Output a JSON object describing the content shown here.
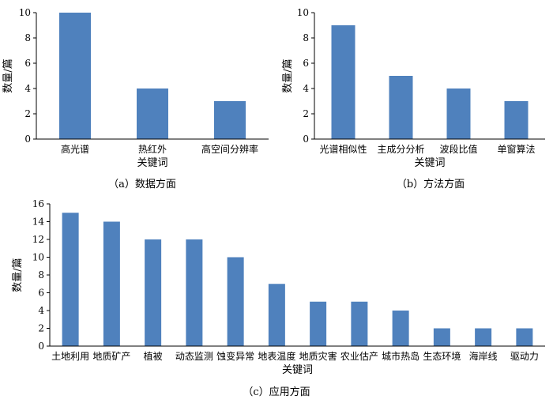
{
  "bar_color": "#4f81bd",
  "chart_data": [
    {
      "type": "bar",
      "caption": "（a）数据方面",
      "xlabel": "关键词",
      "ylabel": "数量/篇",
      "ylim": [
        0,
        10
      ],
      "yticks": [
        0,
        2,
        4,
        6,
        8,
        10
      ],
      "categories": [
        "高光谱",
        "热红外",
        "高空间分辨率"
      ],
      "values": [
        10,
        4,
        3
      ]
    },
    {
      "type": "bar",
      "caption": "（b）方法方面",
      "xlabel": "关键词",
      "ylabel": "数量/篇",
      "ylim": [
        0,
        10
      ],
      "yticks": [
        0,
        2,
        4,
        6,
        8,
        10
      ],
      "categories": [
        "光谱相似性",
        "主成分分析",
        "波段比值",
        "单窗算法"
      ],
      "values": [
        9,
        5,
        4,
        3
      ]
    },
    {
      "type": "bar",
      "caption": "（c）应用方面",
      "xlabel": "关键词",
      "ylabel": "数量/篇",
      "ylim": [
        0,
        16
      ],
      "yticks": [
        0,
        2,
        4,
        6,
        8,
        10,
        12,
        14,
        16
      ],
      "categories": [
        "土地利用",
        "地质矿产",
        "植被",
        "动态监测",
        "蚀变异常",
        "地表温度",
        "地质灾害",
        "农业估产",
        "城市热岛",
        "生态环境",
        "海岸线",
        "驱动力"
      ],
      "values": [
        15,
        14,
        12,
        12,
        10,
        7,
        5,
        5,
        4,
        2,
        2,
        2
      ]
    }
  ]
}
